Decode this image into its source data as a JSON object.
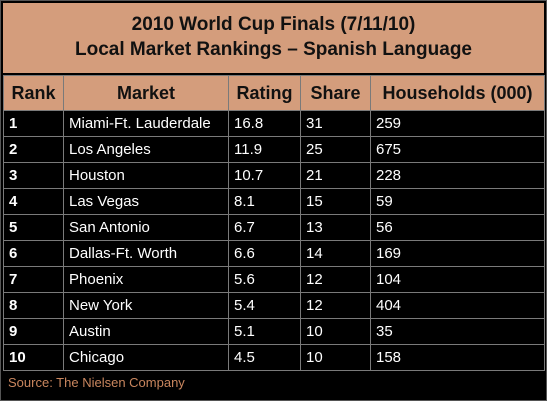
{
  "colors": {
    "header_bg": "#d49d7c",
    "body_bg": "#000000",
    "body_text": "#ffffff",
    "source_text": "#c9865e",
    "grid_lines": "#7a7a7a"
  },
  "title": {
    "line1": "2010 World Cup Finals (7/11/10)",
    "line2": "Local Market Rankings – Spanish Language"
  },
  "source": "Source: The Nielsen Company",
  "chart_data": {
    "type": "table",
    "title": "2010 World Cup Finals (7/11/10) Local Market Rankings – Spanish Language",
    "columns": [
      "Rank",
      "Market",
      "Rating",
      "Share",
      "Households (000)"
    ],
    "rows": [
      [
        "1",
        "Miami-Ft. Lauderdale",
        "16.8",
        "31",
        "259"
      ],
      [
        "2",
        "Los Angeles",
        "11.9",
        "25",
        "675"
      ],
      [
        "3",
        "Houston",
        "10.7",
        "21",
        "228"
      ],
      [
        "4",
        "Las Vegas",
        "8.1",
        "15",
        "59"
      ],
      [
        "5",
        "San Antonio",
        "6.7",
        "13",
        "56"
      ],
      [
        "6",
        "Dallas-Ft. Worth",
        "6.6",
        "14",
        "169"
      ],
      [
        "7",
        "Phoenix",
        "5.6",
        "12",
        "104"
      ],
      [
        "8",
        "New York",
        "5.4",
        "12",
        "404"
      ],
      [
        "9",
        "Austin",
        "5.1",
        "10",
        "35"
      ],
      [
        "10",
        "Chicago",
        "4.5",
        "10",
        "158"
      ]
    ]
  }
}
